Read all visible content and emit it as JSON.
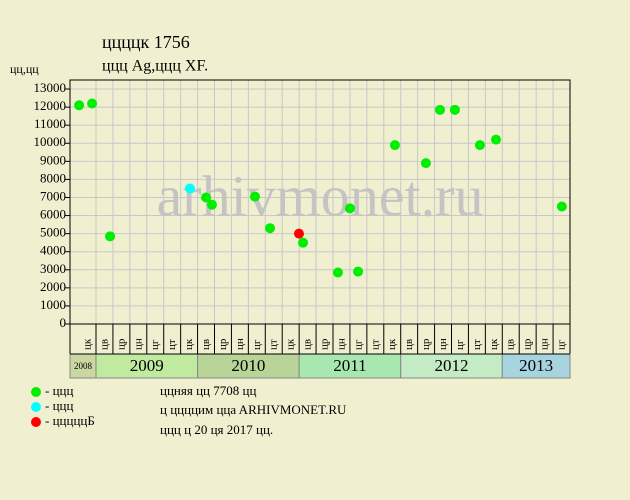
{
  "chart_data": {
    "type": "scatter",
    "title": "ццццк 1756",
    "subtitle": "ццц Ag,ццц XF.",
    "ylabel": "цц,цц",
    "watermark": "arhivmonet.ru",
    "notes": [
      "ццняя цц 7708 цц",
      "ц ццццим ццa ARHIVMONET.RU",
      "ццц ц 20 ця 2017 цц."
    ],
    "categories": [
      "цк",
      "цв",
      "цр",
      "цн",
      "цг",
      "цт",
      "цк",
      "цв",
      "цр",
      "цн",
      "цг",
      "цт",
      "цк",
      "цв",
      "цр",
      "цн",
      "цг",
      "цт",
      "цк",
      "цв",
      "цр",
      "цн",
      "цг",
      "цт",
      "цк",
      "цв",
      "цр",
      "цн",
      "цг"
    ],
    "years": [
      "2008",
      "2009",
      "2010",
      "2011",
      "2012",
      "2013"
    ],
    "xlim": [
      0,
      29
    ],
    "ylim": [
      0,
      13500
    ],
    "yticks": [
      0,
      1000,
      2000,
      3000,
      4000,
      5000,
      6000,
      7000,
      8000,
      9000,
      10000,
      11000,
      12000,
      13000
    ],
    "grid": true,
    "series": [
      {
        "name": "- ццц",
        "color": "#00ee00",
        "x": [
          0.35,
          0.85,
          1.83,
          7.5,
          7.85,
          10.39,
          11.28,
          13.23,
          15.29,
          16.0,
          16.48,
          18.66,
          20.49,
          21.32,
          22.2,
          23.68,
          24.63,
          28.52
        ],
        "values": [
          12100,
          12200,
          4850,
          7000,
          6600,
          7050,
          5300,
          4500,
          2850,
          6400,
          2900,
          9900,
          8900,
          11850,
          11850,
          9900,
          10200,
          6500
        ]
      },
      {
        "name": "- ццц",
        "color": "#00ffff",
        "x": [
          6.55
        ],
        "values": [
          7500
        ]
      },
      {
        "name": "- цццццБ",
        "color": "#ff0000",
        "x": [
          12.99
        ],
        "values": [
          5000
        ]
      }
    ]
  }
}
